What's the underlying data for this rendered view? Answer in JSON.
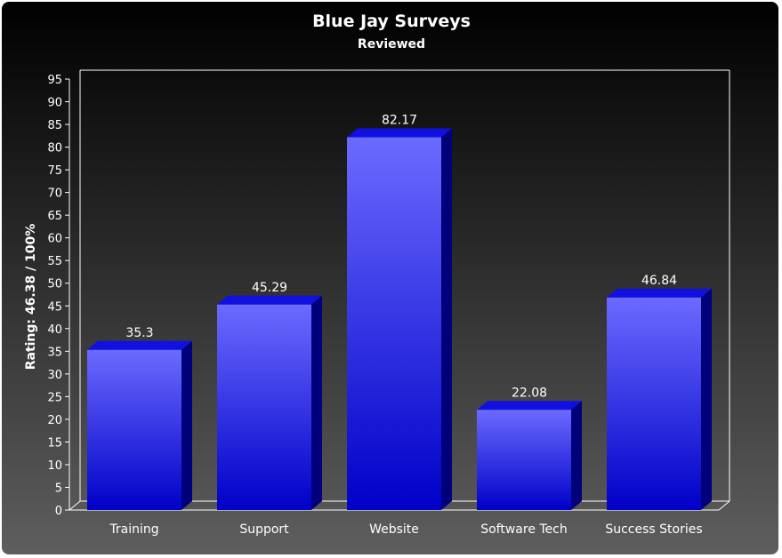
{
  "chart_data": {
    "type": "bar",
    "title": "Blue Jay Surveys",
    "subtitle": "Reviewed",
    "xlabel": "",
    "ylabel": "Rating: 46.38 / 100%",
    "categories": [
      "Training",
      "Support",
      "Website",
      "Software Tech",
      "Success Stories"
    ],
    "values": [
      35.3,
      45.29,
      82.17,
      22.08,
      46.84
    ],
    "data_labels": [
      "35.3",
      "45.29",
      "82.17",
      "22.08",
      "46.84"
    ],
    "ylim": [
      0,
      95
    ],
    "ytick_step": 5,
    "grid": false,
    "legend": "none",
    "colors": {
      "bar_top": "#6b6bff",
      "bar_bottom": "#0000c8",
      "bar_side": "#00007a",
      "bar_cap": "#1010e0",
      "axis": "#ffffff",
      "text": "#ffffff",
      "background_top": "#000000",
      "background_bottom": "#5e5e5e"
    }
  }
}
